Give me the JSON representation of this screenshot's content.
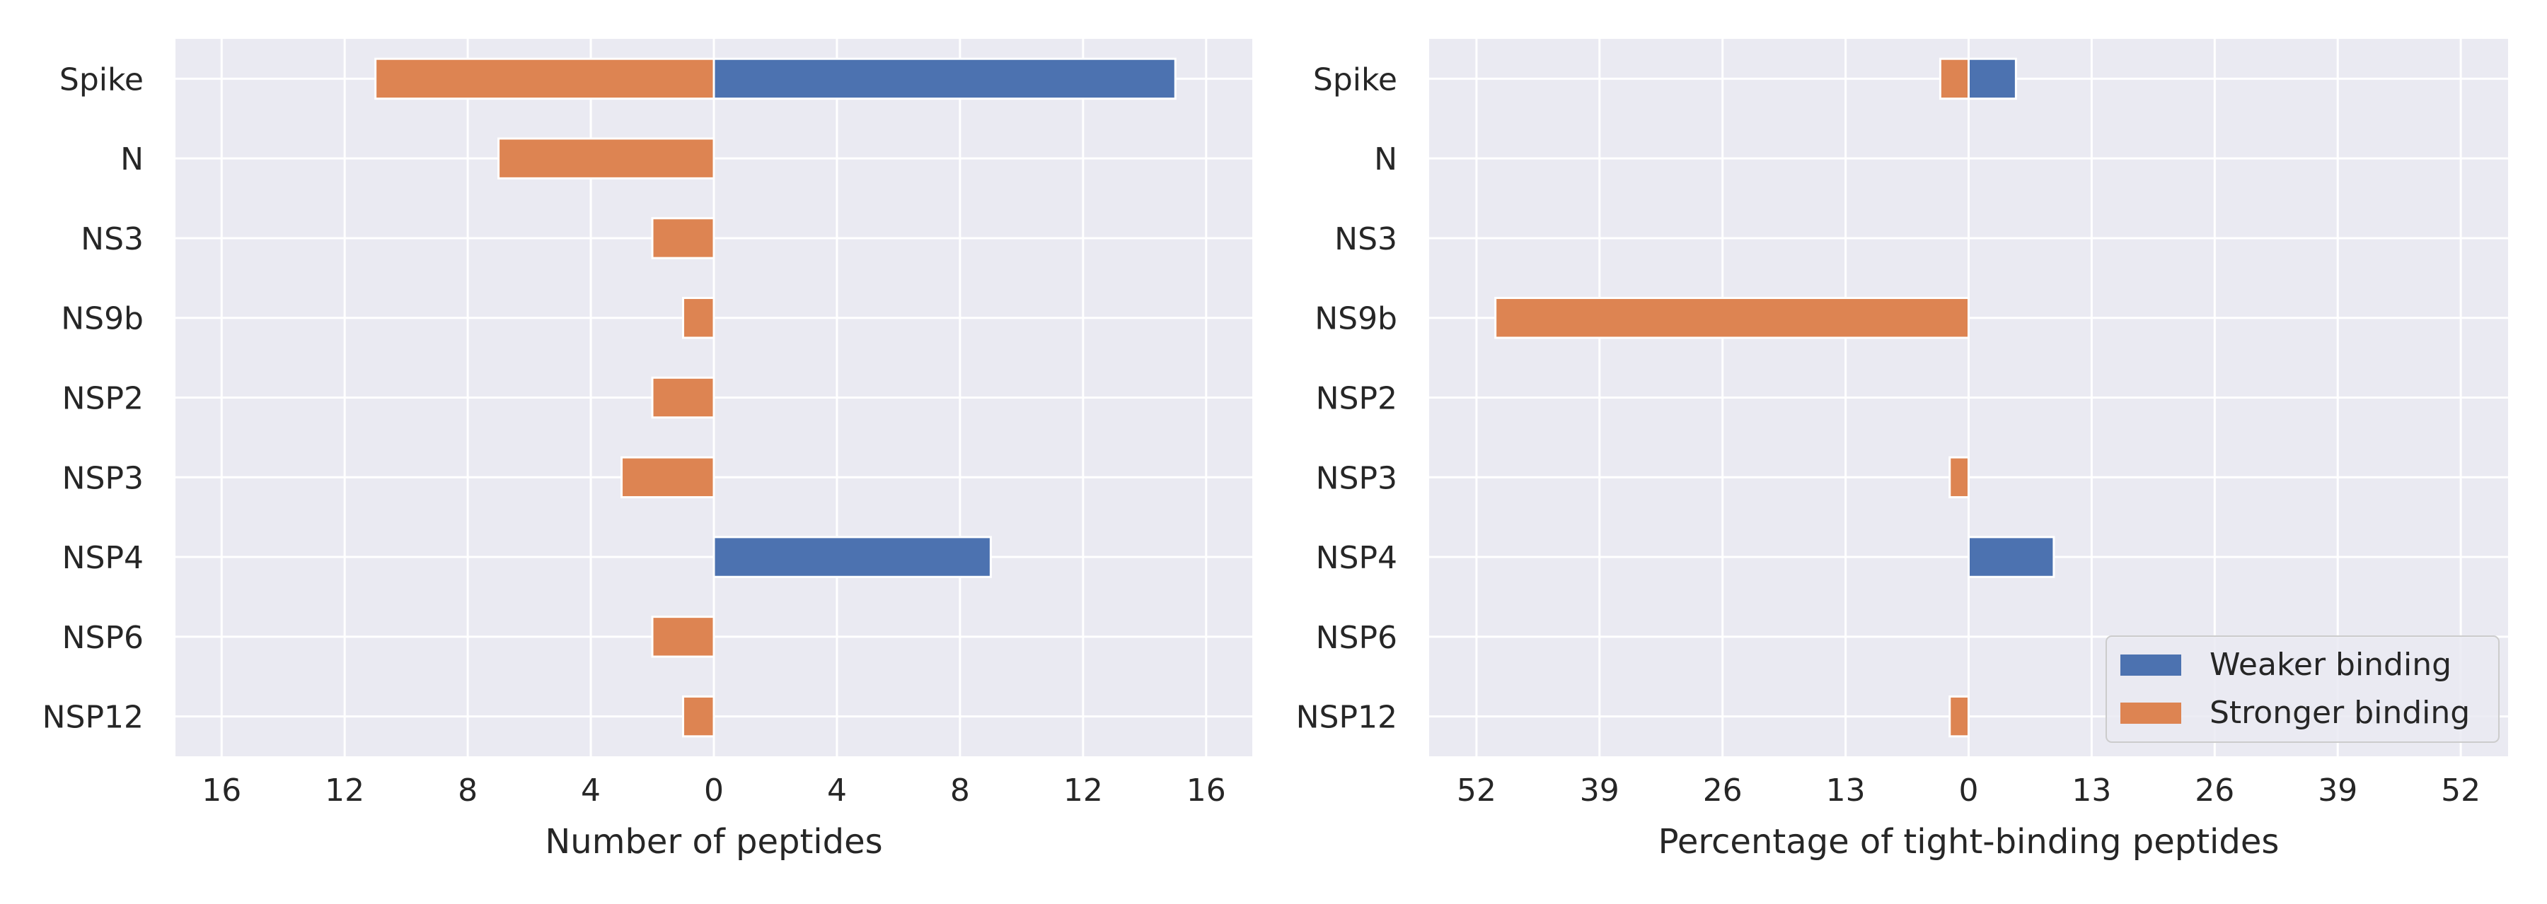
{
  "colors": {
    "weaker": "#4c72b0",
    "stronger": "#dd8452",
    "axes_background": "#eaeaf2",
    "grid": "#ffffff",
    "text": "#262626"
  },
  "chart_data": [
    {
      "type": "bar",
      "orientation": "horizontal",
      "categories": [
        "Spike",
        "N",
        "NS3",
        "NS9b",
        "NSP2",
        "NSP3",
        "NSP4",
        "NSP6",
        "NSP12"
      ],
      "series": [
        {
          "name": "Weaker binding",
          "values": [
            15,
            0,
            0,
            0,
            0,
            0,
            9,
            0,
            0
          ]
        },
        {
          "name": "Stronger binding",
          "values": [
            -11,
            -7,
            -2,
            -1,
            -2,
            -3,
            0,
            -2,
            -1
          ]
        }
      ],
      "xlabel": "Number of peptides",
      "ylabel": "",
      "xlim": [
        -17.5,
        17.5
      ],
      "xticks": [
        -16,
        -12,
        -8,
        -4,
        0,
        4,
        8,
        12,
        16
      ],
      "xtick_labels": [
        "16",
        "12",
        "8",
        "4",
        "0",
        "4",
        "8",
        "12",
        "16"
      ],
      "grid": true,
      "legend": null
    },
    {
      "type": "bar",
      "orientation": "horizontal",
      "categories": [
        "Spike",
        "N",
        "NS3",
        "NS9b",
        "NSP2",
        "NSP3",
        "NSP4",
        "NSP6",
        "NSP12"
      ],
      "series": [
        {
          "name": "Weaker binding",
          "values": [
            5,
            0,
            0,
            0,
            0,
            0,
            9,
            0,
            0
          ]
        },
        {
          "name": "Stronger binding",
          "values": [
            -3,
            0,
            0,
            -50,
            0,
            -2,
            0,
            0,
            -2
          ]
        }
      ],
      "xlabel": "Percentage of tight-binding peptides",
      "ylabel": "",
      "xlim": [
        -57,
        57
      ],
      "xticks": [
        -52,
        -39,
        -26,
        -13,
        0,
        13,
        26,
        39,
        52
      ],
      "xtick_labels": [
        "52",
        "39",
        "26",
        "13",
        "0",
        "13",
        "26",
        "39",
        "52"
      ],
      "grid": true,
      "legend": {
        "position": "lower-right",
        "entries": [
          "Weaker binding",
          "Stronger binding"
        ]
      }
    }
  ]
}
